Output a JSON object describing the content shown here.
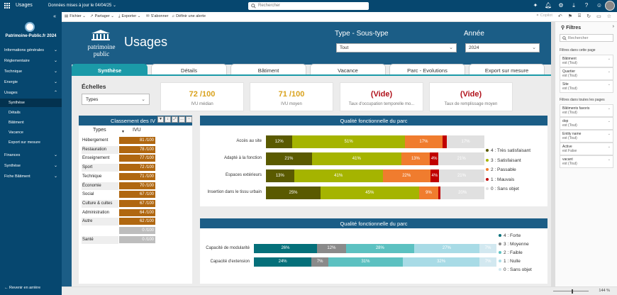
{
  "topbar": {
    "app_name": "Usages",
    "updated": "Données mises à jour le 04/04/25",
    "search_placeholder": "Rechercher"
  },
  "sidebar": {
    "workspace": "Patrimoine-Public.fr 2024",
    "items": [
      {
        "label": "Informations générales",
        "sub": false,
        "chev": "⌄"
      },
      {
        "label": "Réglementaire",
        "sub": false,
        "chev": "⌄"
      },
      {
        "label": "Technique",
        "sub": false,
        "chev": "⌄"
      },
      {
        "label": "Energie",
        "sub": false,
        "chev": "⌄"
      },
      {
        "label": "Usages",
        "sub": false,
        "chev": "⌃"
      },
      {
        "label": "Synthèse",
        "sub": true,
        "active": true
      },
      {
        "label": "Détails",
        "sub": true
      },
      {
        "label": "Bâtiment",
        "sub": true
      },
      {
        "label": "Vacance",
        "sub": true
      },
      {
        "label": "Export sur mesure",
        "sub": true
      },
      {
        "label": "Finances",
        "sub": false,
        "chev": "⌄"
      },
      {
        "label": "Synthèse",
        "sub": false,
        "chev": "⌄"
      },
      {
        "label": "Fiche Bâtiment",
        "sub": false,
        "chev": "⌄"
      }
    ],
    "back": "Revenir en arrière"
  },
  "cmdbar": {
    "fichier": "Fichier",
    "partager": "Partager",
    "exporter": "Exporter",
    "sabonner": "S'abonner",
    "alerte": "Définir une alerte",
    "copilot": "Copilot"
  },
  "report": {
    "brand_line1": "patrimoine",
    "brand_line2": "public",
    "title": "Usages",
    "type_label": "Type - Sous-type",
    "type_value": "Tout",
    "year_label": "Année",
    "year_value": "2024",
    "tabs": [
      "Synthèse",
      "Détails",
      "Bâtiment",
      "Vacance",
      "Parc - Evolutions",
      "Export sur mesure"
    ],
    "echelles_label": "Échelles",
    "echelles_value": "Types",
    "kpis": [
      {
        "value": "72 /100",
        "label": "IVU médian",
        "color": "#d9a21c"
      },
      {
        "value": "71 /100",
        "label": "IVU moyen",
        "color": "#d9a21c"
      },
      {
        "value": "(Vide)",
        "label": "Taux d'occupation temporelle mo...",
        "color": "#b0121b"
      },
      {
        "value": "(Vide)",
        "label": "Taux de remplissage moyen",
        "color": "#b0121b"
      }
    ]
  },
  "ivu": {
    "title": "Classement des IV",
    "col_types": "Types",
    "col_ivu": "IVU",
    "rows": [
      {
        "name": "Hébergement",
        "value": "81 /100",
        "empty": false
      },
      {
        "name": "Restauration",
        "value": "78 /100",
        "empty": false
      },
      {
        "name": "Enseignement",
        "value": "77 /100",
        "empty": false
      },
      {
        "name": "Sport",
        "value": "72 /100",
        "empty": false
      },
      {
        "name": "Technique",
        "value": "71 /100",
        "empty": false
      },
      {
        "name": "Économie",
        "value": "70 /100",
        "empty": false
      },
      {
        "name": "Social",
        "value": "67 /100",
        "empty": false
      },
      {
        "name": "Culture & cultes",
        "value": "67 /100",
        "empty": false
      },
      {
        "name": "Administration",
        "value": "64 /100",
        "empty": false
      },
      {
        "name": "Autre",
        "value": "62 /100",
        "empty": false
      },
      {
        "name": "",
        "value": "0 /100",
        "empty": true
      },
      {
        "name": "Santé",
        "value": "0 /100",
        "empty": true
      }
    ]
  },
  "chart_data": [
    {
      "type": "bar",
      "stacked": true,
      "orientation": "horizontal",
      "title": "Qualité fonctionnelle du parc",
      "categories": [
        "Accès au site",
        "Adapté à la fonction",
        "Espaces extérieurs",
        "Insertion dans le tissu urbain"
      ],
      "series": [
        {
          "name": "4 : Très satisfaisant",
          "color": "#5a5a00",
          "values": [
            12,
            21,
            13,
            25
          ]
        },
        {
          "name": "3 : Satisfaisant",
          "color": "#a5b400",
          "values": [
            51,
            41,
            41,
            45
          ]
        },
        {
          "name": "2 : Passable",
          "color": "#f07c2e",
          "values": [
            17,
            13,
            22,
            9
          ]
        },
        {
          "name": "1 : Mauvais",
          "color": "#c00000",
          "values": [
            2,
            4,
            4,
            1
          ]
        },
        {
          "name": "0 : Sans objet",
          "color": "#e0e0e0",
          "values": [
            17,
            21,
            21,
            20
          ]
        }
      ],
      "labels": [
        [
          "12%",
          "51%",
          "17%",
          "",
          "17%"
        ],
        [
          "21%",
          "41%",
          "13%",
          "4%",
          "21%"
        ],
        [
          "13%",
          "41%",
          "22%",
          "4%",
          "21%"
        ],
        [
          "25%",
          "45%",
          "9%",
          "",
          "20%"
        ]
      ],
      "legend": "right"
    },
    {
      "type": "bar",
      "stacked": true,
      "orientation": "horizontal",
      "title": "Qualité fonctionnelle du parc",
      "categories": [
        "Capacité de modularité",
        "Capacité d'extension"
      ],
      "series": [
        {
          "name": "4 : Forte",
          "color": "#05707a",
          "values": [
            26,
            24
          ]
        },
        {
          "name": "3 : Moyenne",
          "color": "#8a8a8a",
          "values": [
            12,
            7
          ]
        },
        {
          "name": "2 : Faible",
          "color": "#5cc1c1",
          "values": [
            28,
            31
          ]
        },
        {
          "name": "1 : Nulle",
          "color": "#a8dbe6",
          "values": [
            27,
            32
          ]
        },
        {
          "name": "0 : Sans objet",
          "color": "#d2e8f0",
          "values": [
            7,
            7
          ]
        }
      ],
      "labels": [
        [
          "26%",
          "12%",
          "28%",
          "27%",
          "7%"
        ],
        [
          "24%",
          "7%",
          "31%",
          "32%",
          "7%"
        ]
      ],
      "legend": "right"
    }
  ],
  "filters": {
    "title": "Filtres",
    "search": "Rechercher",
    "section_page": "Filtres dans cette page",
    "section_all": "Filtres dans toutes les pages",
    "page_cards": [
      {
        "name": "Bâtiment",
        "value": "est (Tout)"
      },
      {
        "name": "Quartier",
        "value": "est (Tout)"
      },
      {
        "name": "Site",
        "value": "est (Tout)"
      }
    ],
    "all_cards": [
      {
        "name": "Bâtiments favoris",
        "value": "est (Tout)"
      },
      {
        "name": "dop",
        "value": "est (Tout)"
      },
      {
        "name": "Entity name",
        "value": "est (Tout)"
      },
      {
        "name": "Active",
        "value": "est False"
      },
      {
        "name": "vacant",
        "value": "est (Tout)"
      }
    ]
  },
  "status": {
    "zoom": "144 %"
  }
}
